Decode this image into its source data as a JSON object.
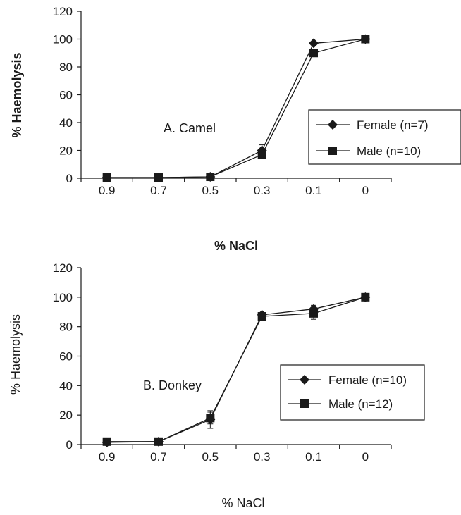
{
  "chart_data": [
    {
      "type": "line",
      "panel_label": "A. Camel",
      "xlabel": "% NaCl",
      "ylabel": "% Haemolysis",
      "categories": [
        "0.9",
        "0.7",
        "0.5",
        "0.3",
        "0.1",
        "0"
      ],
      "ylim": [
        0,
        120
      ],
      "yticks": [
        "0",
        "20",
        "40",
        "60",
        "80",
        "100",
        "120"
      ],
      "grid": false,
      "legend_position": "right",
      "series": [
        {
          "name": "Female (n=7)",
          "marker": "diamond",
          "values": [
            0.5,
            0.5,
            1,
            20,
            97,
            100
          ],
          "errors": [
            0,
            0,
            0.5,
            4,
            1,
            0
          ]
        },
        {
          "name": "Male (n=10)",
          "marker": "square",
          "values": [
            0.5,
            0.5,
            1,
            17,
            90,
            100
          ],
          "errors": [
            0,
            0,
            0.5,
            2,
            2,
            0
          ]
        }
      ]
    },
    {
      "type": "line",
      "panel_label": "B. Donkey",
      "xlabel": "% NaCl",
      "ylabel": "% Haemolysis",
      "categories": [
        "0.9",
        "0.7",
        "0.5",
        "0.3",
        "0.1",
        "0"
      ],
      "ylim": [
        0,
        120
      ],
      "yticks": [
        "0",
        "20",
        "40",
        "60",
        "80",
        "100",
        "120"
      ],
      "grid": false,
      "legend_position": "right",
      "series": [
        {
          "name": "Female (n=10)",
          "marker": "diamond",
          "values": [
            1.5,
            2,
            17,
            88,
            92,
            100
          ],
          "errors": [
            0,
            0,
            6,
            1.5,
            2.5,
            0
          ]
        },
        {
          "name": "Male (n=12)",
          "marker": "square",
          "values": [
            2,
            2,
            18,
            87,
            89,
            100
          ],
          "errors": [
            0,
            0,
            4,
            1.5,
            4,
            0
          ]
        }
      ]
    }
  ]
}
